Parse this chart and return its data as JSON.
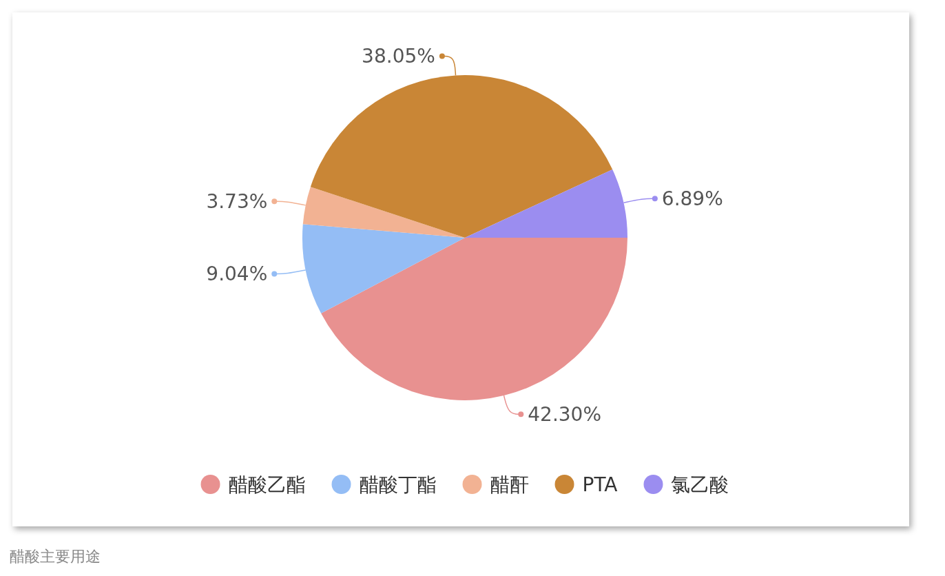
{
  "chart_data": {
    "type": "pie",
    "categories": [
      "醋酸乙酯",
      "醋酸丁酯",
      "醋酐",
      "PTA",
      "氯乙酸"
    ],
    "values": [
      42.3,
      9.04,
      3.73,
      38.05,
      6.89
    ],
    "value_labels": [
      "42.30%",
      "9.04%",
      "3.73%",
      "38.05%",
      "6.89%"
    ],
    "colors": [
      "#e89190",
      "#94bdf5",
      "#f2b293",
      "#c98636",
      "#9b8df0"
    ],
    "legend": "bottom",
    "annotations": [
      "醋酸主要用途"
    ]
  }
}
